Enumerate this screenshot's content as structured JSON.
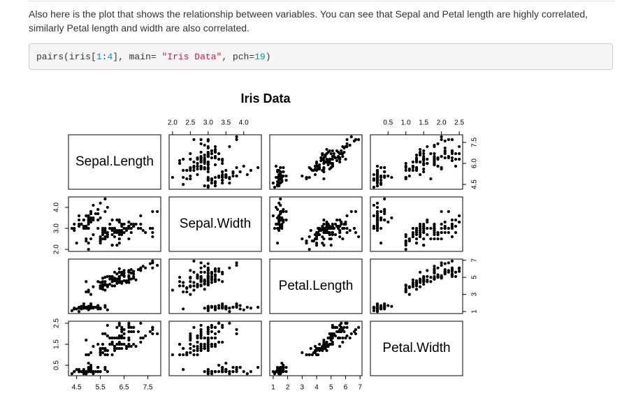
{
  "text": "Also here is the plot that shows the relationship between variables. You can see that Sepal and Petal length are highly correlated, similarly Petal length and width are also correlated.",
  "code": [
    "pairs(iris[",
    "1",
    ":",
    "4",
    "], main= ",
    "\"Iris Data\"",
    ", pch=",
    "19",
    ")"
  ],
  "chart_data": {
    "type": "scatter-matrix",
    "title": "Iris Data",
    "color": "#000000",
    "variables": [
      {
        "name": "Sepal.Length",
        "lim": [
          4.156,
          8.044
        ],
        "xticks": [
          4.5,
          5.5,
          6.5,
          7.5
        ],
        "yticks": [
          4.5,
          {
            "value": 6,
            "label": "6.0"
          },
          7.5
        ],
        "values": [
          5.1,
          4.9,
          4.7,
          4.6,
          5.0,
          5.4,
          4.6,
          5.0,
          4.4,
          4.9,
          5.4,
          4.8,
          4.8,
          4.3,
          5.8,
          5.7,
          5.4,
          5.1,
          5.7,
          5.1,
          5.4,
          5.1,
          4.6,
          5.1,
          4.8,
          5.0,
          5.0,
          5.2,
          5.2,
          4.7,
          4.8,
          5.4,
          5.2,
          5.5,
          4.9,
          5.0,
          5.5,
          4.9,
          4.4,
          5.1,
          5.0,
          4.5,
          4.4,
          5.0,
          5.1,
          4.8,
          5.1,
          4.6,
          5.3,
          5.0,
          7.0,
          6.4,
          6.9,
          5.5,
          6.5,
          5.7,
          6.3,
          4.9,
          6.6,
          5.2,
          5.0,
          5.9,
          6.0,
          6.1,
          5.6,
          6.7,
          5.6,
          5.8,
          6.2,
          5.6,
          5.9,
          6.1,
          6.3,
          6.1,
          6.4,
          6.6,
          6.8,
          6.7,
          6.0,
          5.7,
          5.5,
          5.5,
          5.8,
          6.0,
          5.4,
          6.0,
          6.7,
          6.3,
          5.6,
          5.5,
          5.5,
          6.1,
          5.8,
          5.0,
          5.6,
          5.7,
          5.7,
          6.2,
          5.1,
          5.7,
          6.3,
          5.8,
          7.1,
          6.3,
          6.5,
          7.6,
          4.9,
          7.3,
          6.7,
          7.2,
          6.5,
          6.4,
          6.8,
          5.7,
          5.8,
          6.4,
          6.5,
          7.7,
          7.7,
          6.0,
          6.9,
          5.6,
          7.7,
          6.3,
          6.7,
          7.2,
          6.2,
          6.1,
          6.4,
          7.2,
          7.4,
          7.9,
          6.4,
          6.3,
          6.1,
          7.7,
          6.3,
          6.4,
          6.0,
          6.9,
          6.7,
          6.9,
          5.8,
          6.8,
          6.7,
          6.7,
          6.3,
          6.5,
          6.2,
          5.9
        ]
      },
      {
        "name": "Sepal.Width",
        "lim": [
          1.904,
          4.496
        ],
        "xticks": [
          {
            "value": 2,
            "label": "2.0"
          },
          2.5,
          {
            "value": 3,
            "label": "3.0"
          },
          3.5,
          {
            "value": 4,
            "label": "4.0"
          }
        ],
        "yticks": [
          {
            "value": 2,
            "label": "2.0"
          },
          {
            "value": 3,
            "label": "3.0"
          },
          {
            "value": 4,
            "label": "4.0"
          }
        ],
        "values": [
          3.5,
          3.0,
          3.2,
          3.1,
          3.6,
          3.9,
          3.4,
          3.4,
          2.9,
          3.1,
          3.7,
          3.4,
          3.0,
          3.0,
          4.0,
          4.4,
          3.9,
          3.5,
          3.8,
          3.8,
          3.4,
          3.7,
          3.6,
          3.3,
          3.4,
          3.0,
          3.4,
          3.5,
          3.4,
          3.2,
          3.1,
          3.4,
          4.1,
          4.2,
          3.1,
          3.2,
          3.5,
          3.6,
          3.0,
          3.4,
          3.5,
          2.3,
          3.2,
          3.5,
          3.8,
          3.0,
          3.8,
          3.2,
          3.7,
          3.3,
          3.2,
          3.2,
          3.1,
          2.3,
          2.8,
          2.8,
          3.3,
          2.4,
          2.9,
          2.7,
          2.0,
          3.0,
          2.2,
          2.9,
          2.9,
          3.1,
          3.0,
          2.7,
          2.2,
          2.5,
          3.2,
          2.8,
          2.5,
          2.8,
          2.9,
          3.0,
          2.8,
          3.0,
          2.9,
          2.6,
          2.4,
          2.4,
          2.7,
          2.7,
          3.0,
          3.4,
          3.1,
          2.3,
          3.0,
          2.5,
          2.6,
          3.0,
          2.6,
          2.3,
          2.7,
          3.0,
          2.9,
          2.9,
          2.5,
          2.8,
          3.3,
          2.7,
          3.0,
          2.9,
          3.0,
          3.0,
          2.5,
          2.9,
          2.5,
          3.6,
          3.2,
          2.7,
          3.0,
          2.5,
          2.8,
          3.2,
          3.0,
          3.8,
          2.6,
          2.2,
          3.2,
          2.8,
          2.8,
          2.7,
          3.3,
          3.2,
          2.8,
          3.0,
          2.8,
          3.0,
          2.8,
          3.8,
          2.8,
          2.8,
          2.6,
          3.0,
          3.4,
          3.1,
          3.0,
          3.1,
          3.1,
          3.1,
          2.7,
          3.2,
          3.3,
          3.0,
          2.5,
          3.0,
          3.4,
          3.0
        ]
      },
      {
        "name": "Petal.Length",
        "lim": [
          0.764,
          7.136
        ],
        "xticks": [
          1,
          2,
          3,
          4,
          5,
          6,
          7
        ],
        "yticks": [
          1,
          3,
          5,
          7
        ],
        "values": [
          1.4,
          1.4,
          1.3,
          1.5,
          1.4,
          1.7,
          1.4,
          1.5,
          1.4,
          1.5,
          1.5,
          1.6,
          1.4,
          1.1,
          1.2,
          1.5,
          1.3,
          1.4,
          1.7,
          1.5,
          1.7,
          1.5,
          1.0,
          1.7,
          1.9,
          1.6,
          1.6,
          1.5,
          1.4,
          1.6,
          1.6,
          1.5,
          1.5,
          1.4,
          1.5,
          1.2,
          1.3,
          1.4,
          1.3,
          1.5,
          1.3,
          1.3,
          1.3,
          1.6,
          1.9,
          1.4,
          1.6,
          1.4,
          1.5,
          1.4,
          4.7,
          4.5,
          4.9,
          4.0,
          4.6,
          4.5,
          4.7,
          3.3,
          4.6,
          3.9,
          3.5,
          4.2,
          4.0,
          4.7,
          3.6,
          4.4,
          4.5,
          4.1,
          4.5,
          3.9,
          4.8,
          4.0,
          4.9,
          4.7,
          4.3,
          4.4,
          4.8,
          5.0,
          4.5,
          3.5,
          3.8,
          3.7,
          3.9,
          5.1,
          4.5,
          4.5,
          4.7,
          4.4,
          4.1,
          4.0,
          4.4,
          4.6,
          4.0,
          3.3,
          4.2,
          4.2,
          4.2,
          4.3,
          3.0,
          4.1,
          6.0,
          5.1,
          5.9,
          5.6,
          5.8,
          6.6,
          4.5,
          6.3,
          5.8,
          6.1,
          5.1,
          5.3,
          5.5,
          5.0,
          5.1,
          5.3,
          5.5,
          6.7,
          6.9,
          5.0,
          5.7,
          4.9,
          6.7,
          4.9,
          5.7,
          6.0,
          4.8,
          4.9,
          5.6,
          5.8,
          6.1,
          6.4,
          5.6,
          5.1,
          5.6,
          6.1,
          5.6,
          5.5,
          4.8,
          5.4,
          5.6,
          5.1,
          5.1,
          5.9,
          5.7,
          5.2,
          5.0,
          5.2,
          5.4,
          5.1
        ]
      },
      {
        "name": "Petal.Width",
        "lim": [
          0.004,
          2.596
        ],
        "xticks": [
          0.5,
          {
            "value": 1,
            "label": "1.0"
          },
          1.5,
          {
            "value": 2,
            "label": "2.0"
          },
          2.5
        ],
        "yticks": [
          0.5,
          1.5,
          2.5
        ],
        "values": [
          0.2,
          0.2,
          0.2,
          0.2,
          0.2,
          0.4,
          0.3,
          0.2,
          0.2,
          0.1,
          0.2,
          0.2,
          0.1,
          0.1,
          0.2,
          0.4,
          0.4,
          0.3,
          0.3,
          0.3,
          0.2,
          0.4,
          0.2,
          0.5,
          0.2,
          0.2,
          0.4,
          0.2,
          0.2,
          0.2,
          0.2,
          0.4,
          0.1,
          0.2,
          0.2,
          0.2,
          0.2,
          0.1,
          0.2,
          0.2,
          0.3,
          0.3,
          0.2,
          0.6,
          0.4,
          0.3,
          0.2,
          0.2,
          0.2,
          0.2,
          1.4,
          1.5,
          1.5,
          1.3,
          1.5,
          1.3,
          1.6,
          1.0,
          1.3,
          1.4,
          1.0,
          1.5,
          1.0,
          1.4,
          1.3,
          1.4,
          1.5,
          1.0,
          1.5,
          1.1,
          1.8,
          1.3,
          1.5,
          1.2,
          1.3,
          1.4,
          1.4,
          1.7,
          1.5,
          1.0,
          1.1,
          1.0,
          1.2,
          1.6,
          1.5,
          1.6,
          1.5,
          1.3,
          1.3,
          1.3,
          1.2,
          1.4,
          1.2,
          1.0,
          1.3,
          1.2,
          1.3,
          1.3,
          1.1,
          1.3,
          2.5,
          1.9,
          2.1,
          1.8,
          2.2,
          2.1,
          1.7,
          1.8,
          1.8,
          2.5,
          2.0,
          1.9,
          2.1,
          2.0,
          2.4,
          2.3,
          1.8,
          2.2,
          2.3,
          1.5,
          2.3,
          2.0,
          2.0,
          1.8,
          2.1,
          1.8,
          1.8,
          1.8,
          2.1,
          1.6,
          1.9,
          2.0,
          2.2,
          1.5,
          1.4,
          2.3,
          2.4,
          1.8,
          1.8,
          2.1,
          2.4,
          2.3,
          1.9,
          2.3,
          2.5,
          2.3,
          1.9,
          2.0,
          2.3,
          1.8
        ]
      }
    ]
  }
}
